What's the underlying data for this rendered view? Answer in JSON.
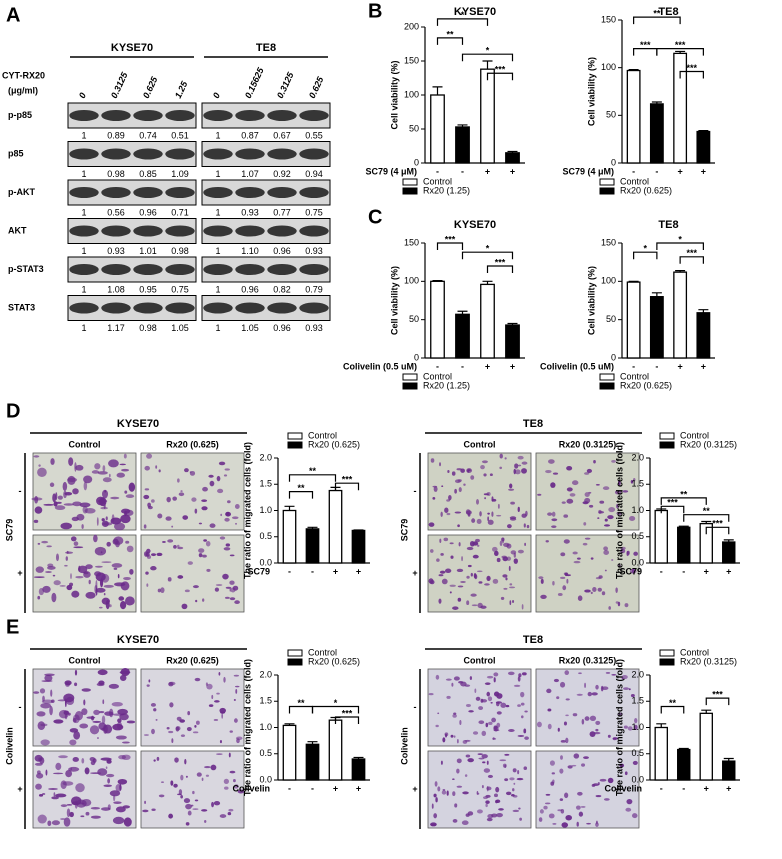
{
  "panels": [
    "A",
    "B",
    "C",
    "D",
    "E"
  ],
  "western_blot": {
    "treatment_label": [
      "CYT-RX20",
      "(μg/ml)"
    ],
    "cell_lines": [
      {
        "name": "KYSE70",
        "doses": [
          "0",
          "0.3125",
          "0.625",
          "1.25"
        ]
      },
      {
        "name": "TE8",
        "doses": [
          "0",
          "0.15625",
          "0.3125",
          "0.625"
        ]
      }
    ],
    "rows": [
      {
        "protein": "p-p85",
        "quant": [
          [
            "1",
            "0.89",
            "0.74",
            "0.51"
          ],
          [
            "1",
            "0.87",
            "0.67",
            "0.55"
          ]
        ]
      },
      {
        "protein": "p85",
        "quant": [
          [
            "1",
            "0.98",
            "0.85",
            "1.09"
          ],
          [
            "1",
            "1.07",
            "0.92",
            "0.94"
          ]
        ]
      },
      {
        "protein": "p-AKT",
        "quant": [
          [
            "1",
            "0.56",
            "0.96",
            "0.71"
          ],
          [
            "1",
            "0.93",
            "0.77",
            "0.75"
          ]
        ]
      },
      {
        "protein": "AKT",
        "quant": [
          [
            "1",
            "0.93",
            "1.01",
            "0.98"
          ],
          [
            "1",
            "1.10",
            "0.96",
            "0.93"
          ]
        ]
      },
      {
        "protein": "p-STAT3",
        "quant": [
          [
            "1",
            "1.08",
            "0.95",
            "0.75"
          ],
          [
            "1",
            "0.96",
            "0.82",
            "0.79"
          ]
        ]
      },
      {
        "protein": "STAT3",
        "quant": [
          [
            "1",
            "1.17",
            "0.98",
            "1.05"
          ],
          [
            "1",
            "1.05",
            "0.96",
            "0.93"
          ]
        ]
      }
    ]
  },
  "migration_images": [
    {
      "cell_line": "KYSE70",
      "columns": [
        "Control",
        "Rx20 (0.625)"
      ],
      "treatment": "SC79",
      "rows": [
        "-",
        "+"
      ]
    },
    {
      "cell_line": "TE8",
      "columns": [
        "Control",
        "Rx20 (0.3125)"
      ],
      "treatment": "SC79",
      "rows": [
        "-",
        "+"
      ]
    },
    {
      "cell_line": "KYSE70",
      "columns": [
        "Control",
        "Rx20 (0.625)"
      ],
      "treatment": "Colivelin",
      "rows": [
        "-",
        "+"
      ]
    },
    {
      "cell_line": "TE8",
      "columns": [
        "Control",
        "Rx20 (0.3125)"
      ],
      "treatment": "Colivelin",
      "rows": [
        "-",
        "+"
      ]
    }
  ],
  "chart_data": [
    {
      "type": "bar",
      "title": "KYSE70",
      "y_label": "Cell viability (%)",
      "x_label": "SC79 (4 μM)",
      "categories": [
        "-",
        "-",
        "+",
        "+"
      ],
      "series": [
        {
          "name": "Control",
          "color": "#ffffff",
          "values": [
            100,
            null,
            138,
            null
          ],
          "errors": [
            12,
            null,
            12,
            null
          ]
        },
        {
          "name": "Rx20 (1.25)",
          "color": "#000000",
          "values": [
            null,
            53,
            null,
            15
          ],
          "errors": [
            null,
            3,
            null,
            2
          ]
        }
      ],
      "ylim": [
        0,
        200
      ],
      "yticks": [
        0,
        50,
        100,
        150,
        200
      ],
      "legend": "bottom",
      "annotations": [
        "*",
        "**",
        "*",
        "***"
      ]
    },
    {
      "type": "bar",
      "title": "TE8",
      "y_label": "Cell viability (%)",
      "x_label": "SC79 (4 μM)",
      "categories": [
        "-",
        "-",
        "+",
        "+"
      ],
      "series": [
        {
          "name": "Control",
          "color": "#ffffff",
          "values": [
            97,
            null,
            115,
            null
          ],
          "errors": [
            1,
            null,
            2,
            null
          ]
        },
        {
          "name": "Rx20 (0.625)",
          "color": "#000000",
          "values": [
            null,
            62,
            null,
            33
          ],
          "errors": [
            null,
            2,
            null,
            1
          ]
        }
      ],
      "ylim": [
        0,
        150
      ],
      "yticks": [
        0,
        50,
        100,
        150
      ],
      "legend": "bottom",
      "annotations": [
        "**",
        "***",
        "***",
        "***"
      ]
    },
    {
      "type": "bar",
      "title": "KYSE70",
      "y_label": "Cell viability (%)",
      "x_label": "Colivelin (0.5 uM)",
      "categories": [
        "-",
        "-",
        "+",
        "+"
      ],
      "series": [
        {
          "name": "Control",
          "color": "#ffffff",
          "values": [
            100,
            null,
            96,
            null
          ],
          "errors": [
            1,
            null,
            4,
            null
          ]
        },
        {
          "name": "Rx20 (1.25)",
          "color": "#000000",
          "values": [
            null,
            57,
            null,
            43
          ],
          "errors": [
            null,
            4,
            null,
            2
          ]
        }
      ],
      "ylim": [
        0,
        150
      ],
      "yticks": [
        0,
        50,
        100,
        150
      ],
      "legend": "bottom",
      "annotations": [
        "***",
        "*",
        "***"
      ]
    },
    {
      "type": "bar",
      "title": "TE8",
      "y_label": "Cell viability (%)",
      "x_label": "Colivelin (0.5 uM)",
      "categories": [
        "-",
        "-",
        "+",
        "+"
      ],
      "series": [
        {
          "name": "Control",
          "color": "#ffffff",
          "values": [
            99,
            null,
            112,
            null
          ],
          "errors": [
            1,
            null,
            2,
            null
          ]
        },
        {
          "name": "Rx20 (0.625)",
          "color": "#000000",
          "values": [
            null,
            80,
            null,
            59
          ],
          "errors": [
            null,
            5,
            null,
            4
          ]
        }
      ],
      "ylim": [
        0,
        150
      ],
      "yticks": [
        0,
        50,
        100,
        150
      ],
      "legend": "bottom",
      "annotations": [
        "*",
        "*",
        "***"
      ]
    },
    {
      "type": "bar",
      "y_label": "The ratio of migrated cells (fold)",
      "x_label": "SC79",
      "categories": [
        "-",
        "-",
        "+",
        "+"
      ],
      "series": [
        {
          "name": "Control",
          "color": "#ffffff",
          "values": [
            1.0,
            null,
            1.38,
            null
          ],
          "errors": [
            0.08,
            null,
            0.06,
            null
          ]
        },
        {
          "name": "Rx20 (0.625)",
          "color": "#000000",
          "values": [
            null,
            0.65,
            null,
            0.62
          ],
          "errors": [
            null,
            0.03,
            null,
            0.01
          ]
        }
      ],
      "ylim": [
        0,
        2
      ],
      "yticks": [
        {
          "value": 0,
          "label": "0.0"
        },
        0.5,
        {
          "value": 1,
          "label": "1.0"
        },
        1.5,
        {
          "value": 2,
          "label": "2.0"
        }
      ],
      "legend": "top",
      "annotations": [
        "**",
        "**",
        "***"
      ]
    },
    {
      "type": "bar",
      "y_label": "The ratio of migrated cells (fold)",
      "x_label": "SC79",
      "categories": [
        "-",
        "-",
        "+",
        "+"
      ],
      "series": [
        {
          "name": "Control",
          "color": "#ffffff",
          "values": [
            1.0,
            null,
            0.75,
            null
          ],
          "errors": [
            0.03,
            null,
            0.04,
            null
          ]
        },
        {
          "name": "Rx20 (0.3125)",
          "color": "#000000",
          "values": [
            null,
            0.68,
            null,
            0.4
          ],
          "errors": [
            null,
            0.02,
            null,
            0.04
          ]
        }
      ],
      "ylim": [
        0,
        2
      ],
      "yticks": [
        {
          "value": 0,
          "label": "0.0"
        },
        0.5,
        {
          "value": 1,
          "label": "1.0"
        },
        1.5,
        {
          "value": 2,
          "label": "2.0"
        }
      ],
      "legend": "top",
      "annotations": [
        "**",
        "***",
        "**",
        "***"
      ]
    },
    {
      "type": "bar",
      "y_label": "The ratio of migrated cells (fold)",
      "x_label": "Colivelin",
      "categories": [
        "-",
        "-",
        "+",
        "+"
      ],
      "series": [
        {
          "name": "Control",
          "color": "#ffffff",
          "values": [
            1.04,
            null,
            1.14,
            null
          ],
          "errors": [
            0.03,
            null,
            0.05,
            null
          ]
        },
        {
          "name": "Rx20 (0.625)",
          "color": "#000000",
          "values": [
            null,
            0.68,
            null,
            0.4
          ],
          "errors": [
            null,
            0.05,
            null,
            0.03
          ]
        }
      ],
      "ylim": [
        0,
        2
      ],
      "yticks": [
        {
          "value": 0,
          "label": "0.0"
        },
        0.5,
        {
          "value": 1,
          "label": "1.0"
        },
        1.5,
        {
          "value": 2,
          "label": "2.0"
        }
      ],
      "legend": "top",
      "annotations": [
        "**",
        "*",
        "***"
      ]
    },
    {
      "type": "bar",
      "y_label": "The ratio of migrated cells (fold)",
      "x_label": "Colivelin",
      "categories": [
        "-",
        "-",
        "+",
        "+"
      ],
      "series": [
        {
          "name": "Control",
          "color": "#ffffff",
          "values": [
            1.0,
            null,
            1.27,
            null
          ],
          "errors": [
            0.07,
            null,
            0.06,
            null
          ]
        },
        {
          "name": "Rx20 (0.3125)",
          "color": "#000000",
          "values": [
            null,
            0.58,
            null,
            0.36
          ],
          "errors": [
            null,
            0.02,
            null,
            0.05
          ]
        }
      ],
      "ylim": [
        0,
        2
      ],
      "yticks": [
        {
          "value": 0,
          "label": "0.0"
        },
        0.5,
        {
          "value": 1,
          "label": "1.0"
        },
        1.5,
        {
          "value": 2,
          "label": "2.0"
        }
      ],
      "legend": "top",
      "annotations": [
        "**",
        "***"
      ]
    }
  ]
}
